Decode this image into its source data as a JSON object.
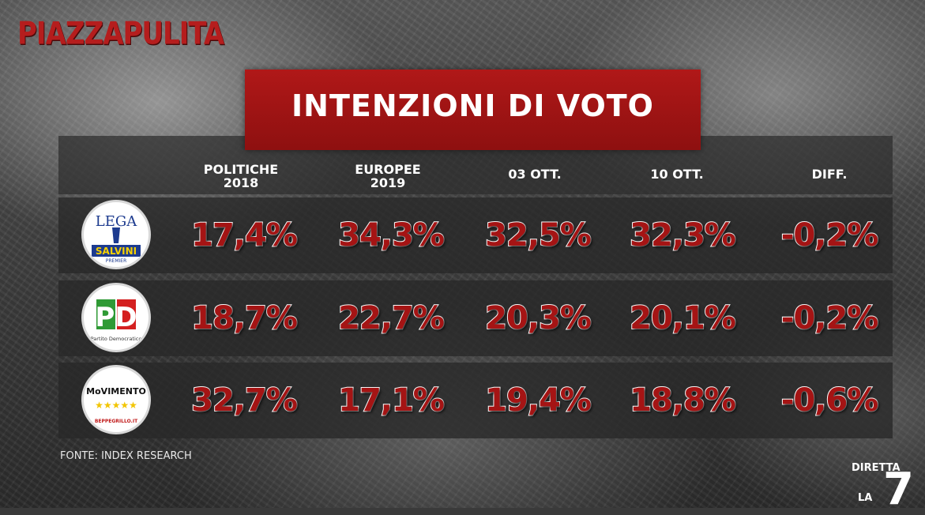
{
  "brand": "PIAZZAPULITA",
  "title": "INTENZIONI DI VOTO",
  "source": "FONTE: INDEX RESEARCH",
  "channel": {
    "line1": "DIRETTA",
    "line2": "LA",
    "number": "7"
  },
  "colors": {
    "accent": "#a51414",
    "title_bg": "#a01515"
  },
  "chart_data": {
    "type": "table",
    "columns": [
      {
        "line1": "POLITICHE",
        "line2": "2018"
      },
      {
        "line1": "EUROPEE",
        "line2": "2019"
      },
      {
        "line1": "03 OTT.",
        "line2": ""
      },
      {
        "line1": "10 OTT.",
        "line2": ""
      },
      {
        "line1": "DIFF.",
        "line2": ""
      }
    ],
    "rows": [
      {
        "logo": {
          "top": "LEGA",
          "bottom": "SALVINI",
          "sub": "PREMIER"
        },
        "values": [
          "17,4%",
          "34,3%",
          "32,5%",
          "32,3%",
          "-0,2%"
        ]
      },
      {
        "logo": {
          "top": "PD",
          "bottom": "Partito Democratico"
        },
        "values": [
          "18,7%",
          "22,7%",
          "20,3%",
          "20,1%",
          "-0,2%"
        ]
      },
      {
        "logo": {
          "top": "MoVIMENTO",
          "stars": "★★★★★",
          "bottom": "BEPPEGRILLO.IT"
        },
        "values": [
          "32,7%",
          "17,1%",
          "19,4%",
          "18,8%",
          "-0,6%"
        ]
      }
    ]
  }
}
